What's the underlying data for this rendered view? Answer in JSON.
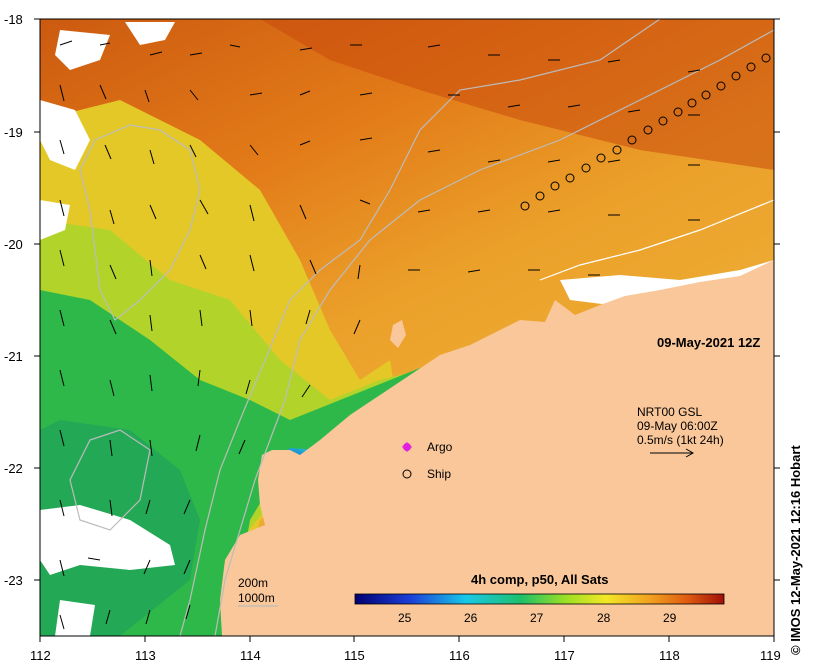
{
  "map": {
    "lon_ticks": [
      "112",
      "113",
      "114",
      "115",
      "116",
      "117",
      "118",
      "119"
    ],
    "lat_ticks": [
      "-18",
      "-19",
      "-20",
      "-21",
      "-22",
      "-23"
    ],
    "lon_range": [
      112,
      119
    ],
    "lat_range": [
      -23.5,
      -18
    ]
  },
  "annotations": {
    "timestamp": "09-May-2021 12Z",
    "current_source": "NRT00 GSL",
    "current_date": "09-May 06:00Z",
    "current_scale": "0.5m/s (1kt 24h)",
    "legend_argo": "Argo",
    "legend_ship": "Ship",
    "isobath_200": "200m",
    "isobath_1000": "1000m",
    "credit": "© IMOS 12-May-2021 12:16 Hobart"
  },
  "colorbar": {
    "title": "4h comp, p50, All Sats",
    "ticks": [
      "25",
      "26",
      "27",
      "28",
      "29"
    ],
    "range": [
      24.3,
      29.8
    ]
  },
  "colors": {
    "land": "#f9c79a",
    "warm": "#c4420a",
    "orange": "#e6841a",
    "yellow": "#ead42a",
    "green": "#2fb84a",
    "blue": "#1430c8",
    "argo": "#e020e0"
  }
}
